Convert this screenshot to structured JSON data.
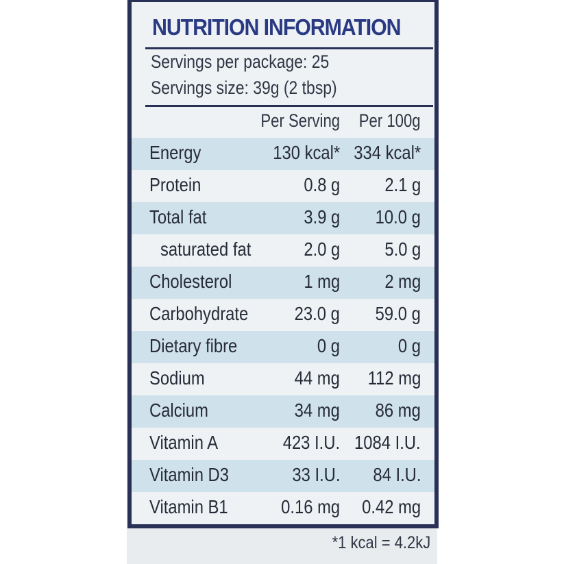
{
  "title": "NUTRITION INFORMATION",
  "servings_per_package": "Servings per package: 25",
  "serving_size": "Servings size: 39g (2 tbsp)",
  "columns": {
    "per_serving": "Per Serving",
    "per_100g": "Per 100g"
  },
  "rows": [
    {
      "name": "Energy",
      "per_serving": "130 kcal*",
      "per_100g": "334 kcal*"
    },
    {
      "name": "Protein",
      "per_serving": "0.8 g",
      "per_100g": "2.1 g"
    },
    {
      "name": "Total fat",
      "per_serving": "3.9 g",
      "per_100g": "10.0 g"
    },
    {
      "name": "saturated fat",
      "per_serving": "2.0 g",
      "per_100g": "5.0 g"
    },
    {
      "name": "Cholesterol",
      "per_serving": "1 mg",
      "per_100g": "2 mg"
    },
    {
      "name": "Carbohydrate",
      "per_serving": "23.0 g",
      "per_100g": "59.0 g"
    },
    {
      "name": "Dietary fibre",
      "per_serving": "0 g",
      "per_100g": "0 g"
    },
    {
      "name": "Sodium",
      "per_serving": "44 mg",
      "per_100g": "112 mg"
    },
    {
      "name": "Calcium",
      "per_serving": "34 mg",
      "per_100g": "86 mg"
    },
    {
      "name": "Vitamin A",
      "per_serving": "423 I.U.",
      "per_100g": "1084 I.U."
    },
    {
      "name": "Vitamin D3",
      "per_serving": "33 I.U.",
      "per_100g": "84 I.U."
    },
    {
      "name": "Vitamin B1",
      "per_serving": "0.16 mg",
      "per_100g": "0.42 mg"
    }
  ],
  "footnote": "*1 kcal = 4.2kJ",
  "colors": {
    "title": "#2a3a82",
    "border": "#2a3157",
    "row_shade": "#cfe1ea",
    "panel": "#eef2f5"
  }
}
